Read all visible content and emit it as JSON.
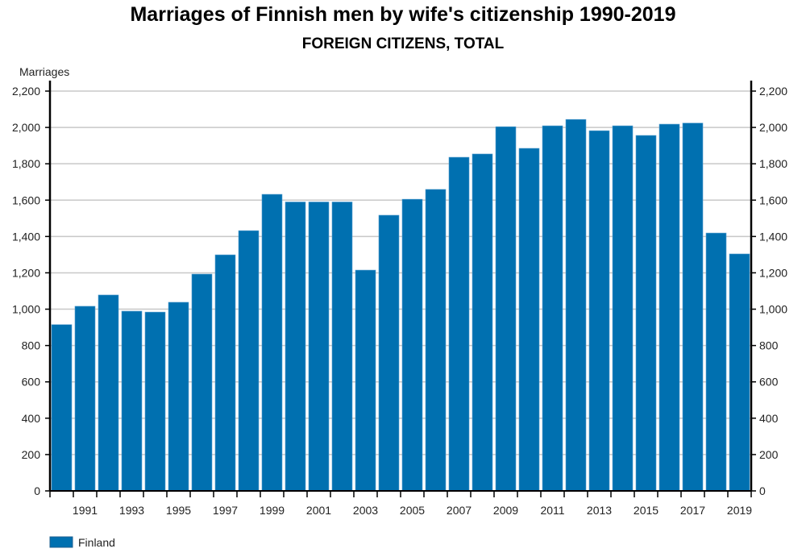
{
  "chart_data": {
    "type": "bar",
    "title": "Marriages of Finnish men by wife's citizenship 1990-2019",
    "subtitle": "FOREIGN CITIZENS, TOTAL",
    "ylabel": "Marriages",
    "xlabel": "",
    "ylim": [
      0,
      2200
    ],
    "yticks": [
      0,
      200,
      400,
      600,
      800,
      1000,
      1200,
      1400,
      1600,
      1800,
      2000,
      2200
    ],
    "ytick_labels": [
      "0",
      "200",
      "400",
      "600",
      "800",
      "1,000",
      "1,200",
      "1,400",
      "1,600",
      "1,800",
      "2,000",
      "2,200"
    ],
    "grid": true,
    "legend_position": "bottom-left",
    "categories": [
      "1990",
      "1991",
      "1992",
      "1993",
      "1994",
      "1995",
      "1996",
      "1997",
      "1998",
      "1999",
      "2000",
      "2001",
      "2002",
      "2003",
      "2004",
      "2005",
      "2006",
      "2007",
      "2008",
      "2009",
      "2010",
      "2011",
      "2012",
      "2013",
      "2014",
      "2015",
      "2016",
      "2017",
      "2018",
      "2019"
    ],
    "series": [
      {
        "name": "Finland",
        "color": "#0070b0",
        "values": [
          915,
          1016,
          1078,
          989,
          984,
          1038,
          1193,
          1299,
          1432,
          1632,
          1590,
          1590,
          1590,
          1215,
          1517,
          1605,
          1659,
          1836,
          1854,
          2004,
          1885,
          2009,
          2044,
          1982,
          2009,
          1956,
          2018,
          2024,
          1419,
          1304
        ]
      }
    ]
  }
}
